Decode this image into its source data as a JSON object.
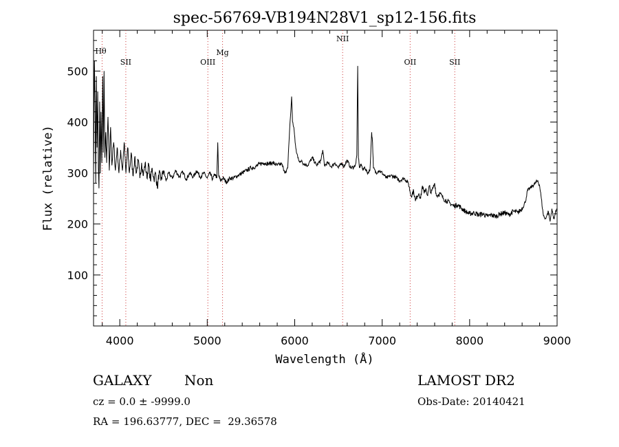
{
  "chart_data": {
    "type": "line",
    "title": "spec-56769-VB194N28V1_sp12-156.fits",
    "xlabel": "Wavelength (Å)",
    "ylabel": "Flux (relative)",
    "xlim": [
      3700,
      9000
    ],
    "ylim": [
      0,
      580
    ],
    "xticks": [
      4000,
      5000,
      6000,
      7000,
      8000,
      9000
    ],
    "yticks": [
      100,
      200,
      300,
      400,
      500
    ],
    "grid": false,
    "line_color": "#000000",
    "marker_color": "#cc3333",
    "lines": [
      {
        "label": "Hθ",
        "x": 3798
      },
      {
        "label": "SII",
        "x": 4069
      },
      {
        "label": "OIII",
        "x": 5007
      },
      {
        "label": "Mg",
        "x": 5175
      },
      {
        "label": "NII",
        "x": 6548
      },
      {
        "label": "OII",
        "x": 7320
      },
      {
        "label": "SII",
        "x": 7830
      }
    ],
    "spectrum": [
      [
        3700,
        300
      ],
      [
        3710,
        520
      ],
      [
        3718,
        430
      ],
      [
        3725,
        280
      ],
      [
        3732,
        490
      ],
      [
        3740,
        350
      ],
      [
        3748,
        460
      ],
      [
        3755,
        310
      ],
      [
        3762,
        270
      ],
      [
        3770,
        440
      ],
      [
        3778,
        300
      ],
      [
        3785,
        420
      ],
      [
        3795,
        320
      ],
      [
        3805,
        490
      ],
      [
        3812,
        340
      ],
      [
        3820,
        500
      ],
      [
        3830,
        330
      ],
      [
        3840,
        380
      ],
      [
        3850,
        320
      ],
      [
        3865,
        410
      ],
      [
        3880,
        305
      ],
      [
        3895,
        390
      ],
      [
        3910,
        315
      ],
      [
        3930,
        360
      ],
      [
        3950,
        305
      ],
      [
        3970,
        350
      ],
      [
        3990,
        300
      ],
      [
        4010,
        345
      ],
      [
        4030,
        305
      ],
      [
        4050,
        360
      ],
      [
        4070,
        300
      ],
      [
        4090,
        350
      ],
      [
        4110,
        300
      ],
      [
        4130,
        340
      ],
      [
        4150,
        295
      ],
      [
        4170,
        330
      ],
      [
        4190,
        300
      ],
      [
        4210,
        325
      ],
      [
        4230,
        290
      ],
      [
        4250,
        320
      ],
      [
        4270,
        295
      ],
      [
        4290,
        320
      ],
      [
        4310,
        290
      ],
      [
        4330,
        318
      ],
      [
        4350,
        285
      ],
      [
        4370,
        310
      ],
      [
        4390,
        288
      ],
      [
        4410,
        300
      ],
      [
        4430,
        270
      ],
      [
        4450,
        302
      ],
      [
        4470,
        285
      ],
      [
        4500,
        305
      ],
      [
        4530,
        285
      ],
      [
        4560,
        300
      ],
      [
        4600,
        290
      ],
      [
        4640,
        305
      ],
      [
        4680,
        292
      ],
      [
        4720,
        302
      ],
      [
        4760,
        288
      ],
      [
        4800,
        300
      ],
      [
        4840,
        292
      ],
      [
        4880,
        305
      ],
      [
        4920,
        292
      ],
      [
        4960,
        300
      ],
      [
        5000,
        290
      ],
      [
        5030,
        300
      ],
      [
        5060,
        288
      ],
      [
        5090,
        298
      ],
      [
        5110,
        290
      ],
      [
        5120,
        360
      ],
      [
        5130,
        295
      ],
      [
        5150,
        285
      ],
      [
        5180,
        290
      ],
      [
        5220,
        282
      ],
      [
        5260,
        290
      ],
      [
        5300,
        290
      ],
      [
        5350,
        295
      ],
      [
        5400,
        300
      ],
      [
        5450,
        305
      ],
      [
        5500,
        310
      ],
      [
        5550,
        312
      ],
      [
        5600,
        318
      ],
      [
        5650,
        320
      ],
      [
        5700,
        318
      ],
      [
        5750,
        320
      ],
      [
        5800,
        315
      ],
      [
        5850,
        318
      ],
      [
        5880,
        305
      ],
      [
        5900,
        300
      ],
      [
        5920,
        310
      ],
      [
        5940,
        380
      ],
      [
        5955,
        420
      ],
      [
        5965,
        450
      ],
      [
        5975,
        400
      ],
      [
        5990,
        390
      ],
      [
        6005,
        360
      ],
      [
        6020,
        340
      ],
      [
        6040,
        330
      ],
      [
        6060,
        320
      ],
      [
        6080,
        325
      ],
      [
        6100,
        318
      ],
      [
        6150,
        315
      ],
      [
        6200,
        330
      ],
      [
        6250,
        315
      ],
      [
        6300,
        325
      ],
      [
        6320,
        345
      ],
      [
        6340,
        315
      ],
      [
        6380,
        320
      ],
      [
        6420,
        312
      ],
      [
        6460,
        320
      ],
      [
        6500,
        310
      ],
      [
        6540,
        320
      ],
      [
        6560,
        312
      ],
      [
        6600,
        325
      ],
      [
        6640,
        310
      ],
      [
        6680,
        312
      ],
      [
        6700,
        320
      ],
      [
        6710,
        335
      ],
      [
        6720,
        510
      ],
      [
        6728,
        330
      ],
      [
        6740,
        310
      ],
      [
        6760,
        318
      ],
      [
        6780,
        305
      ],
      [
        6800,
        312
      ],
      [
        6830,
        300
      ],
      [
        6860,
        305
      ],
      [
        6880,
        380
      ],
      [
        6890,
        360
      ],
      [
        6900,
        310
      ],
      [
        6930,
        300
      ],
      [
        6960,
        305
      ],
      [
        7000,
        300
      ],
      [
        7050,
        290
      ],
      [
        7100,
        295
      ],
      [
        7150,
        292
      ],
      [
        7200,
        285
      ],
      [
        7250,
        290
      ],
      [
        7300,
        280
      ],
      [
        7330,
        255
      ],
      [
        7360,
        265
      ],
      [
        7380,
        245
      ],
      [
        7400,
        255
      ],
      [
        7420,
        260
      ],
      [
        7440,
        250
      ],
      [
        7460,
        275
      ],
      [
        7480,
        260
      ],
      [
        7500,
        270
      ],
      [
        7520,
        255
      ],
      [
        7540,
        275
      ],
      [
        7560,
        260
      ],
      [
        7580,
        270
      ],
      [
        7600,
        280
      ],
      [
        7620,
        255
      ],
      [
        7660,
        260
      ],
      [
        7700,
        250
      ],
      [
        7740,
        245
      ],
      [
        7780,
        240
      ],
      [
        7820,
        235
      ],
      [
        7860,
        238
      ],
      [
        7900,
        232
      ],
      [
        7950,
        225
      ],
      [
        8000,
        220
      ],
      [
        8050,
        222
      ],
      [
        8100,
        218
      ],
      [
        8150,
        220
      ],
      [
        8200,
        215
      ],
      [
        8250,
        218
      ],
      [
        8300,
        215
      ],
      [
        8350,
        220
      ],
      [
        8400,
        222
      ],
      [
        8450,
        218
      ],
      [
        8500,
        225
      ],
      [
        8550,
        222
      ],
      [
        8600,
        230
      ],
      [
        8640,
        245
      ],
      [
        8660,
        265
      ],
      [
        8690,
        270
      ],
      [
        8720,
        275
      ],
      [
        8750,
        280
      ],
      [
        8780,
        285
      ],
      [
        8800,
        275
      ],
      [
        8820,
        250
      ],
      [
        8840,
        220
      ],
      [
        8860,
        210
      ],
      [
        8880,
        215
      ],
      [
        8900,
        225
      ],
      [
        8920,
        205
      ],
      [
        8940,
        230
      ],
      [
        8960,
        210
      ],
      [
        8980,
        220
      ],
      [
        8995,
        230
      ]
    ]
  },
  "info": {
    "object_class": "GALAXY",
    "subclass": "Non",
    "survey": "LAMOST DR2",
    "cz": "cz = 0.0 ± -9999.0",
    "obs_date": "Obs-Date: 20140421",
    "radec": "RA = 196.63777, DEC =  29.36578"
  }
}
